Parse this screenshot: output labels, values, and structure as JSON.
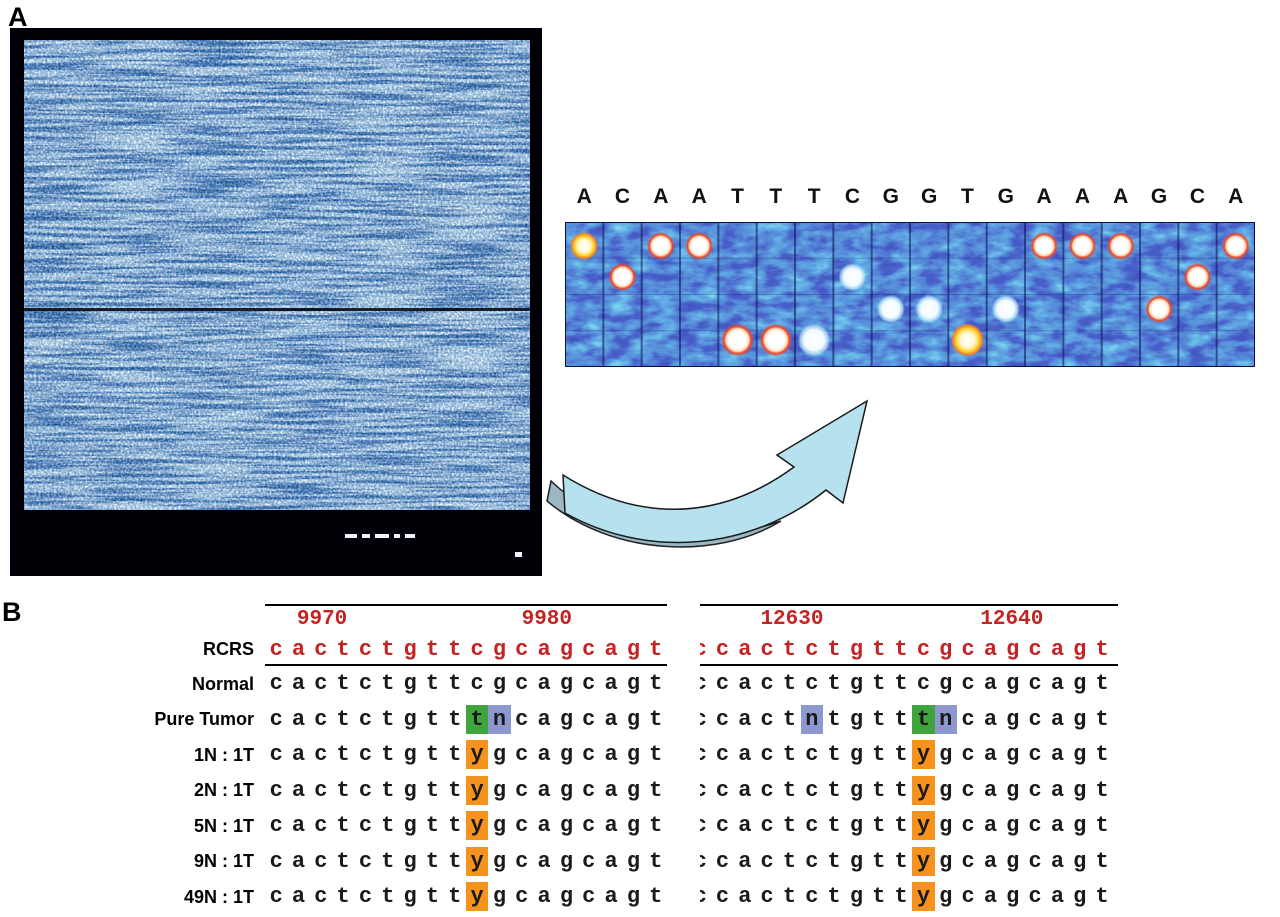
{
  "panelA": {
    "label": "A",
    "basecalls": [
      {
        "base": "A",
        "tint": "yellow"
      },
      {
        "base": "C",
        "tint": "red"
      },
      {
        "base": "A",
        "tint": "red"
      },
      {
        "base": "A",
        "tint": "red"
      },
      {
        "base": "T",
        "tint": "red"
      },
      {
        "base": "T",
        "tint": "red"
      },
      {
        "base": "T",
        "tint": "white"
      },
      {
        "base": "C",
        "tint": "white"
      },
      {
        "base": "G",
        "tint": "white"
      },
      {
        "base": "G",
        "tint": "white"
      },
      {
        "base": "T",
        "tint": "yellow"
      },
      {
        "base": "G",
        "tint": "white"
      },
      {
        "base": "A",
        "tint": "red"
      },
      {
        "base": "A",
        "tint": "red"
      },
      {
        "base": "A",
        "tint": "red"
      },
      {
        "base": "G",
        "tint": "red"
      },
      {
        "base": "C",
        "tint": "red"
      },
      {
        "base": "A",
        "tint": "red"
      }
    ],
    "base_row_order": [
      "A",
      "C",
      "G",
      "T"
    ]
  },
  "panelB": {
    "label": "B",
    "rcrs_color": "#c32323",
    "highlight_colors": {
      "green": "#3fa43c",
      "blue": "#8e98d0",
      "orange": "#f6921e"
    },
    "row_labels": [
      "RCRS",
      "Normal",
      "Pure Tumor",
      "1N : 1T",
      "2N : 1T",
      "5N : 1T",
      "9N : 1T",
      "49N : 1T"
    ],
    "blocks": [
      {
        "numbers": [
          "9970",
          "9980"
        ],
        "rows": [
          {
            "style": "rcrs",
            "seq": "cactctgttcgcagcagt",
            "highlights": {}
          },
          {
            "style": "normal",
            "seq": "cactctgttcgcagcagt",
            "highlights": {}
          },
          {
            "style": "normal",
            "seq": "cactctgtttncagcagt",
            "highlights": {
              "9": "green",
              "10": "blue"
            }
          },
          {
            "style": "normal",
            "seq": "cactctgttygcagcagt",
            "highlights": {
              "9": "orange"
            }
          },
          {
            "style": "normal",
            "seq": "cactctgttygcagcagt",
            "highlights": {
              "9": "orange"
            }
          },
          {
            "style": "normal",
            "seq": "cactctgttygcagcagt",
            "highlights": {
              "9": "orange"
            }
          },
          {
            "style": "normal",
            "seq": "cactctgttygcagcagt",
            "highlights": {
              "9": "orange"
            }
          },
          {
            "style": "normal",
            "seq": "cactctgttygcagcagt",
            "highlights": {
              "9": "orange"
            }
          }
        ]
      },
      {
        "numbers": [
          "12630",
          "12640"
        ],
        "rows": [
          {
            "style": "rcrs",
            "seq": "ccactctgttcgcagcagtc",
            "highlights": {}
          },
          {
            "style": "normal",
            "seq": "ccactctgttcgcagcagtc",
            "highlights": {}
          },
          {
            "style": "normal",
            "seq": "ccactntgtttncagcagtc",
            "highlights": {
              "5": "blue",
              "10": "green",
              "11": "blue"
            }
          },
          {
            "style": "normal",
            "seq": "ccactctgttygcagcagtc",
            "highlights": {
              "10": "orange"
            }
          },
          {
            "style": "normal",
            "seq": "ccactctgttygcagcagtc",
            "highlights": {
              "10": "orange"
            }
          },
          {
            "style": "normal",
            "seq": "ccactctgttygcagcagtc",
            "highlights": {
              "10": "orange"
            }
          },
          {
            "style": "normal",
            "seq": "ccactctgttygcagcagtc",
            "highlights": {
              "10": "orange"
            }
          },
          {
            "style": "normal",
            "seq": "ccactctgttygcagcagtc",
            "highlights": {
              "10": "orange"
            }
          }
        ]
      }
    ]
  }
}
